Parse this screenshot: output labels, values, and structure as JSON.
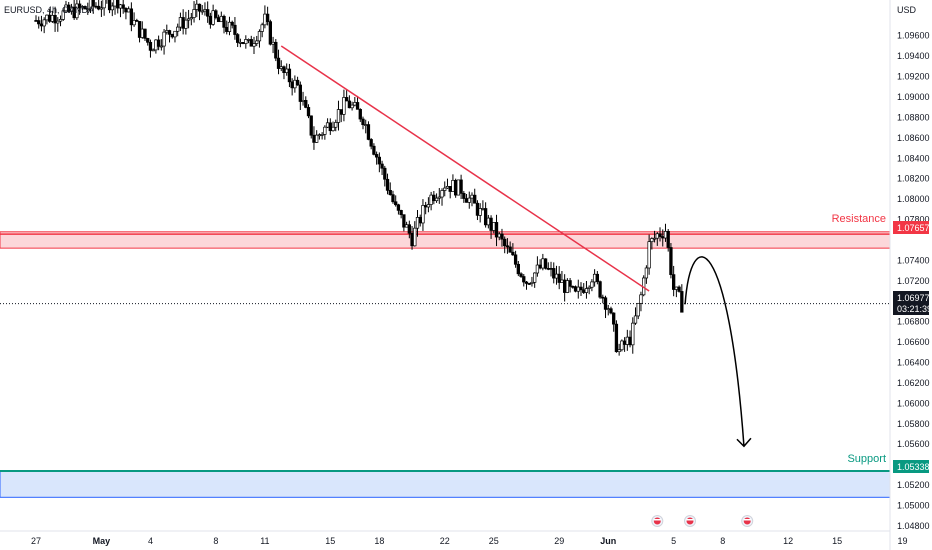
{
  "header": {
    "symbol_label": "EURUSD, 4h, OANDA"
  },
  "price_axis": {
    "currency": "USD"
  },
  "colors": {
    "bull": "#ffffff",
    "bear": "#000000",
    "wick": "#000000",
    "resistance": "#f23645",
    "support": "#089981",
    "trendline": "#e8334a",
    "support_fill": "#cfe0fb"
  },
  "chart_data": {
    "type": "candlestick",
    "title": "",
    "y_range": [
      1.0475,
      1.0995
    ],
    "y_ticks": [
      "1.09600",
      "1.09400",
      "1.09200",
      "1.09000",
      "1.08800",
      "1.08600",
      "1.08400",
      "1.08200",
      "1.08000",
      "1.07800",
      "1.07400",
      "1.07200",
      "1.06800",
      "1.06600",
      "1.06400",
      "1.06200",
      "1.06000",
      "1.05800",
      "1.05600",
      "1.05200",
      "1.05000",
      "1.04800"
    ],
    "x_ticks": [
      {
        "label": "27",
        "day": 0
      },
      {
        "label": "May",
        "day": 4
      },
      {
        "label": "4",
        "day": 7
      },
      {
        "label": "8",
        "day": 11
      },
      {
        "label": "11",
        "day": 14
      },
      {
        "label": "15",
        "day": 18
      },
      {
        "label": "18",
        "day": 21
      },
      {
        "label": "22",
        "day": 25
      },
      {
        "label": "25",
        "day": 28
      },
      {
        "label": "29",
        "day": 32
      },
      {
        "label": "Jun",
        "day": 35
      },
      {
        "label": "5",
        "day": 39
      },
      {
        "label": "8",
        "day": 42
      },
      {
        "label": "12",
        "day": 46
      },
      {
        "label": "15",
        "day": 49
      },
      {
        "label": "19",
        "day": 53
      }
    ],
    "current_price": {
      "value": 1.06977,
      "label": "1.06977",
      "countdown": "03:21:39"
    },
    "resistance": {
      "label": "Resistance",
      "price_label": "1.07657",
      "level": 1.07657,
      "zone": [
        1.0752,
        1.0768
      ]
    },
    "support": {
      "label": "Support",
      "price_label": "1.05338",
      "level": 1.05338,
      "zone": [
        1.0508,
        1.0534
      ]
    },
    "trendline": {
      "start": {
        "day": 15.0,
        "price": 1.095
      },
      "end": {
        "day": 37.5,
        "price": 1.071
      }
    },
    "forecast": {
      "start": {
        "day": 39.7,
        "price": 1.0697
      },
      "peak": {
        "day": 41.5,
        "price": 1.0738
      },
      "end": {
        "day": 43.3,
        "price": 1.0558
      }
    },
    "anchors": [
      {
        "day": 0,
        "price": 1.0975
      },
      {
        "day": 5,
        "price": 1.0995
      },
      {
        "day": 7,
        "price": 1.095
      },
      {
        "day": 10,
        "price": 1.0985
      },
      {
        "day": 12,
        "price": 1.0965
      },
      {
        "day": 13,
        "price": 1.095
      },
      {
        "day": 14,
        "price": 1.0975
      },
      {
        "day": 15,
        "price": 1.0925
      },
      {
        "day": 16,
        "price": 1.091
      },
      {
        "day": 17,
        "price": 1.0858
      },
      {
        "day": 18,
        "price": 1.0875
      },
      {
        "day": 19,
        "price": 1.0895
      },
      {
        "day": 20,
        "price": 1.088
      },
      {
        "day": 21,
        "price": 1.0835
      },
      {
        "day": 22,
        "price": 1.079
      },
      {
        "day": 23,
        "price": 1.0762
      },
      {
        "day": 24,
        "price": 1.08
      },
      {
        "day": 25,
        "price": 1.0815
      },
      {
        "day": 26,
        "price": 1.081
      },
      {
        "day": 27,
        "price": 1.079
      },
      {
        "day": 28,
        "price": 1.077
      },
      {
        "day": 29,
        "price": 1.0745
      },
      {
        "day": 30,
        "price": 1.072
      },
      {
        "day": 31,
        "price": 1.0735
      },
      {
        "day": 32,
        "price": 1.072
      },
      {
        "day": 33,
        "price": 1.0705
      },
      {
        "day": 34,
        "price": 1.0725
      },
      {
        "day": 35,
        "price": 1.0695
      },
      {
        "day": 35.6,
        "price": 1.065
      },
      {
        "day": 36.4,
        "price": 1.0665
      },
      {
        "day": 37,
        "price": 1.0705
      },
      {
        "day": 37.5,
        "price": 1.0755
      },
      {
        "day": 38,
        "price": 1.0765
      },
      {
        "day": 38.5,
        "price": 1.077
      },
      {
        "day": 39,
        "price": 1.0712
      },
      {
        "day": 39.5,
        "price": 1.0697
      }
    ],
    "events": [
      {
        "day": 38.0
      },
      {
        "day": 40.0
      },
      {
        "day": 43.5
      }
    ]
  }
}
